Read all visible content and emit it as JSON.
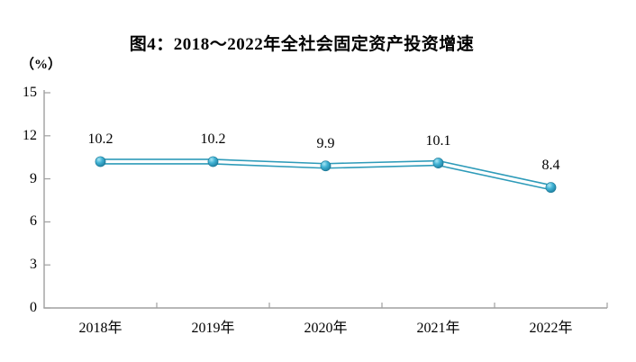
{
  "chart_data": {
    "type": "line",
    "title": "图4：2018～2022年全社会固定资产投资增速",
    "ylabel": "（%）",
    "xlabel": "",
    "categories": [
      "2018年",
      "2019年",
      "2020年",
      "2021年",
      "2022年"
    ],
    "values": [
      10.2,
      10.2,
      9.9,
      10.1,
      8.4
    ],
    "point_labels": [
      "10.2",
      "10.2",
      "9.9",
      "10.1",
      "8.4"
    ],
    "series_name": "全社会固定资产投资增速",
    "ylim": [
      0,
      15
    ],
    "yticks": [
      0,
      3,
      6,
      9,
      12,
      15
    ],
    "grid": false,
    "legend_position": "none",
    "marker_style": "sphere",
    "line_style": "tube",
    "colors": {
      "line": "#2E9BB9",
      "line_inner": "#FFFFFF",
      "marker": "#41B2D4",
      "marker_highlight": "#A9E6F4",
      "marker_edge": "#1A7694",
      "axis": "#A0A0A0",
      "text": "#000000",
      "background": "#FFFFFF"
    }
  }
}
